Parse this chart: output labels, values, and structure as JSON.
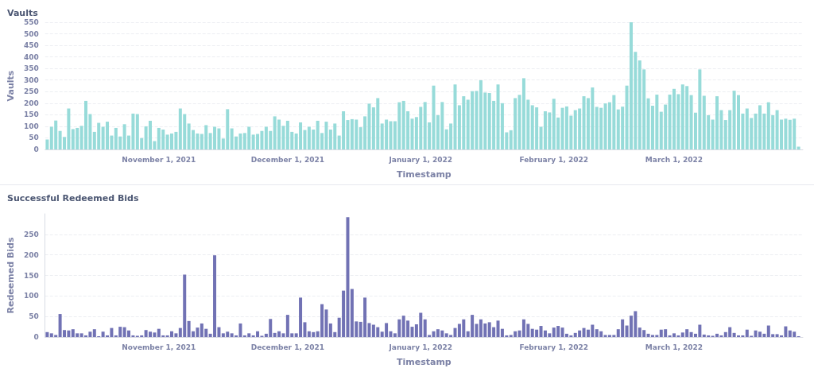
{
  "chart_data": [
    {
      "type": "bar",
      "title": "Vaults",
      "xlabel": "Timestamp",
      "ylabel": "Vaults",
      "color": "#97dbd9",
      "grid": "y",
      "x": [
        "2021-10-06",
        "2021-10-07",
        "2021-10-08",
        "2021-10-09",
        "2021-10-10",
        "2021-10-11",
        "2021-10-12",
        "2021-10-13",
        "2021-10-14",
        "2021-10-15",
        "2021-10-16",
        "2021-10-17",
        "2021-10-18",
        "2021-10-19",
        "2021-10-20",
        "2021-10-21",
        "2021-10-22",
        "2021-10-23",
        "2021-10-24",
        "2021-10-25",
        "2021-10-26",
        "2021-10-27",
        "2021-10-28",
        "2021-10-29",
        "2021-10-30",
        "2021-10-31",
        "2021-11-01",
        "2021-11-02",
        "2021-11-03",
        "2021-11-04",
        "2021-11-05",
        "2021-11-06",
        "2021-11-07",
        "2021-11-08",
        "2021-11-09",
        "2021-11-10",
        "2021-11-11",
        "2021-11-12",
        "2021-11-13",
        "2021-11-14",
        "2021-11-15",
        "2021-11-16",
        "2021-11-17",
        "2021-11-18",
        "2021-11-19",
        "2021-11-20",
        "2021-11-21",
        "2021-11-22",
        "2021-11-23",
        "2021-11-24",
        "2021-11-25",
        "2021-11-26",
        "2021-11-27",
        "2021-11-28",
        "2021-11-29",
        "2021-11-30",
        "2021-12-01",
        "2021-12-02",
        "2021-12-03",
        "2021-12-04",
        "2021-12-05",
        "2021-12-06",
        "2021-12-07",
        "2021-12-08",
        "2021-12-09",
        "2021-12-10",
        "2021-12-11",
        "2021-12-12",
        "2021-12-13",
        "2021-12-14",
        "2021-12-15",
        "2021-12-16",
        "2021-12-17",
        "2021-12-18",
        "2021-12-19",
        "2021-12-20",
        "2021-12-21",
        "2021-12-22",
        "2021-12-23",
        "2021-12-24",
        "2021-12-25",
        "2021-12-26",
        "2021-12-27",
        "2021-12-28",
        "2021-12-29",
        "2021-12-30",
        "2021-12-31",
        "2022-01-01",
        "2022-01-02",
        "2022-01-03",
        "2022-01-04",
        "2022-01-05",
        "2022-01-06",
        "2022-01-07",
        "2022-01-08",
        "2022-01-09",
        "2022-01-10",
        "2022-01-11",
        "2022-01-12",
        "2022-01-13",
        "2022-01-14",
        "2022-01-15",
        "2022-01-16",
        "2022-01-17",
        "2022-01-18",
        "2022-01-19",
        "2022-01-20",
        "2022-01-21",
        "2022-01-22",
        "2022-01-23",
        "2022-01-24",
        "2022-01-25",
        "2022-01-26",
        "2022-01-27",
        "2022-01-28",
        "2022-01-29",
        "2022-01-30",
        "2022-01-31",
        "2022-02-01",
        "2022-02-02",
        "2022-02-03",
        "2022-02-04",
        "2022-02-05",
        "2022-02-06",
        "2022-02-07",
        "2022-02-08",
        "2022-02-09",
        "2022-02-10",
        "2022-02-11",
        "2022-02-12",
        "2022-02-13",
        "2022-02-14",
        "2022-02-15",
        "2022-02-16",
        "2022-02-17",
        "2022-02-18",
        "2022-02-19",
        "2022-02-20",
        "2022-02-21",
        "2022-02-22",
        "2022-02-23",
        "2022-02-24",
        "2022-02-25",
        "2022-02-26",
        "2022-02-27",
        "2022-02-28",
        "2022-03-01",
        "2022-03-02",
        "2022-03-03",
        "2022-03-04",
        "2022-03-05",
        "2022-03-06",
        "2022-03-07",
        "2022-03-08",
        "2022-03-09",
        "2022-03-10",
        "2022-03-11",
        "2022-03-12",
        "2022-03-13",
        "2022-03-14",
        "2022-03-15",
        "2022-03-16",
        "2022-03-17",
        "2022-03-18",
        "2022-03-19",
        "2022-03-20",
        "2022-03-21",
        "2022-03-22",
        "2022-03-23",
        "2022-03-24",
        "2022-03-25",
        "2022-03-26",
        "2022-03-27",
        "2022-03-28",
        "2022-03-29",
        "2022-03-30"
      ],
      "values": [
        43,
        98,
        125,
        80,
        54,
        177,
        88,
        93,
        102,
        210,
        153,
        76,
        115,
        98,
        120,
        60,
        93,
        56,
        109,
        60,
        155,
        153,
        49,
        100,
        124,
        36,
        93,
        86,
        64,
        69,
        76,
        177,
        153,
        112,
        84,
        69,
        67,
        105,
        71,
        98,
        91,
        47,
        174,
        91,
        56,
        69,
        71,
        98,
        64,
        67,
        80,
        98,
        80,
        143,
        129,
        102,
        124,
        76,
        69,
        117,
        84,
        98,
        86,
        124,
        71,
        120,
        86,
        112,
        60,
        165,
        127,
        131,
        129,
        96,
        143,
        198,
        182,
        222,
        112,
        129,
        122,
        122,
        204,
        210,
        165,
        133,
        140,
        184,
        205,
        117,
        276,
        148,
        205,
        87,
        112,
        281,
        191,
        230,
        215,
        252,
        253,
        299,
        246,
        244,
        210,
        281,
        200,
        74,
        83,
        222,
        236,
        308,
        215,
        191,
        182,
        98,
        165,
        160,
        219,
        138,
        180,
        186,
        146,
        170,
        177,
        230,
        222,
        268,
        184,
        180,
        199,
        204,
        235,
        173,
        185,
        276,
        550,
        422,
        385,
        346,
        221,
        189,
        237,
        163,
        194,
        237,
        262,
        239,
        281,
        274,
        235,
        159,
        346,
        232,
        148,
        129,
        230,
        170,
        127,
        170,
        254,
        235,
        155,
        177,
        136,
        155,
        191,
        155,
        204,
        148,
        170,
        129,
        133,
        128,
        133,
        12
      ],
      "xlim": [
        "2021-10-05T12:00",
        "2022-03-31T00:00"
      ],
      "xticks": [
        {
          "value": "2021-11-01",
          "label": "November 1, 2021"
        },
        {
          "value": "2021-12-01",
          "label": "December 1, 2021"
        },
        {
          "value": "2022-01-01",
          "label": "January 1, 2022"
        },
        {
          "value": "2022-02-01",
          "label": "February 1, 2022"
        },
        {
          "value": "2022-03-01",
          "label": "March 1, 2022"
        }
      ],
      "ylim": [
        0,
        550
      ],
      "yticks": [
        0,
        50,
        100,
        150,
        200,
        250,
        300,
        350,
        400,
        450,
        500,
        550
      ]
    },
    {
      "type": "bar",
      "title": "Successful Redeemed Bids",
      "xlabel": "Timestamp",
      "ylabel": "Redeemed Bids",
      "color": "#7172b4",
      "grid": "y",
      "x": [
        "2021-10-06",
        "2021-10-07",
        "2021-10-08",
        "2021-10-09",
        "2021-10-10",
        "2021-10-11",
        "2021-10-12",
        "2021-10-13",
        "2021-10-14",
        "2021-10-15",
        "2021-10-16",
        "2021-10-17",
        "2021-10-18",
        "2021-10-19",
        "2021-10-20",
        "2021-10-21",
        "2021-10-22",
        "2021-10-23",
        "2021-10-24",
        "2021-10-25",
        "2021-10-26",
        "2021-10-27",
        "2021-10-28",
        "2021-10-29",
        "2021-10-30",
        "2021-10-31",
        "2021-11-01",
        "2021-11-02",
        "2021-11-03",
        "2021-11-04",
        "2021-11-05",
        "2021-11-06",
        "2021-11-07",
        "2021-11-08",
        "2021-11-09",
        "2021-11-10",
        "2021-11-11",
        "2021-11-12",
        "2021-11-13",
        "2021-11-14",
        "2021-11-15",
        "2021-11-16",
        "2021-11-17",
        "2021-11-18",
        "2021-11-19",
        "2021-11-20",
        "2021-11-21",
        "2021-11-22",
        "2021-11-23",
        "2021-11-24",
        "2021-11-25",
        "2021-11-26",
        "2021-11-27",
        "2021-11-28",
        "2021-11-29",
        "2021-11-30",
        "2021-12-01",
        "2021-12-02",
        "2021-12-03",
        "2021-12-04",
        "2021-12-05",
        "2021-12-06",
        "2021-12-07",
        "2021-12-08",
        "2021-12-09",
        "2021-12-10",
        "2021-12-11",
        "2021-12-12",
        "2021-12-13",
        "2021-12-14",
        "2021-12-15",
        "2021-12-16",
        "2021-12-17",
        "2021-12-18",
        "2021-12-19",
        "2021-12-20",
        "2021-12-21",
        "2021-12-22",
        "2021-12-23",
        "2021-12-24",
        "2021-12-25",
        "2021-12-26",
        "2021-12-27",
        "2021-12-28",
        "2021-12-29",
        "2021-12-30",
        "2021-12-31",
        "2022-01-01",
        "2022-01-02",
        "2022-01-03",
        "2022-01-04",
        "2022-01-05",
        "2022-01-06",
        "2022-01-07",
        "2022-01-08",
        "2022-01-09",
        "2022-01-10",
        "2022-01-11",
        "2022-01-12",
        "2022-01-13",
        "2022-01-14",
        "2022-01-15",
        "2022-01-16",
        "2022-01-17",
        "2022-01-18",
        "2022-01-19",
        "2022-01-20",
        "2022-01-21",
        "2022-01-22",
        "2022-01-23",
        "2022-01-24",
        "2022-01-25",
        "2022-01-26",
        "2022-01-27",
        "2022-01-28",
        "2022-01-29",
        "2022-01-30",
        "2022-01-31",
        "2022-02-01",
        "2022-02-02",
        "2022-02-03",
        "2022-02-04",
        "2022-02-05",
        "2022-02-06",
        "2022-02-07",
        "2022-02-08",
        "2022-02-09",
        "2022-02-10",
        "2022-02-11",
        "2022-02-12",
        "2022-02-13",
        "2022-02-14",
        "2022-02-15",
        "2022-02-16",
        "2022-02-17",
        "2022-02-18",
        "2022-02-19",
        "2022-02-20",
        "2022-02-21",
        "2022-02-22",
        "2022-02-23",
        "2022-02-24",
        "2022-02-25",
        "2022-02-26",
        "2022-02-27",
        "2022-02-28",
        "2022-03-01",
        "2022-03-02",
        "2022-03-03",
        "2022-03-04",
        "2022-03-05",
        "2022-03-06",
        "2022-03-07",
        "2022-03-08",
        "2022-03-09",
        "2022-03-10",
        "2022-03-11",
        "2022-03-12",
        "2022-03-13",
        "2022-03-14",
        "2022-03-15",
        "2022-03-16",
        "2022-03-17",
        "2022-03-18",
        "2022-03-19",
        "2022-03-20",
        "2022-03-21",
        "2022-03-22",
        "2022-03-23",
        "2022-03-24",
        "2022-03-25",
        "2022-03-26",
        "2022-03-27",
        "2022-03-28",
        "2022-03-29",
        "2022-03-30"
      ],
      "values": [
        12,
        9,
        5,
        56,
        17,
        16,
        19,
        9,
        9,
        4,
        13,
        19,
        2,
        13,
        4,
        22,
        4,
        25,
        24,
        16,
        4,
        3,
        4,
        17,
        13,
        11,
        20,
        4,
        4,
        14,
        9,
        22,
        152,
        39,
        14,
        23,
        33,
        20,
        8,
        199,
        24,
        9,
        13,
        9,
        4,
        33,
        4,
        9,
        4,
        14,
        3,
        8,
        44,
        10,
        14,
        9,
        54,
        9,
        9,
        96,
        36,
        14,
        12,
        14,
        80,
        67,
        33,
        12,
        47,
        113,
        292,
        117,
        38,
        37,
        96,
        34,
        30,
        24,
        13,
        34,
        14,
        9,
        43,
        52,
        40,
        25,
        31,
        59,
        43,
        5,
        14,
        19,
        16,
        9,
        5,
        22,
        32,
        43,
        14,
        54,
        32,
        43,
        33,
        36,
        24,
        40,
        20,
        4,
        5,
        14,
        16,
        43,
        32,
        20,
        18,
        27,
        16,
        9,
        23,
        27,
        23,
        8,
        4,
        10,
        16,
        22,
        18,
        30,
        19,
        14,
        5,
        5,
        5,
        19,
        43,
        28,
        52,
        63,
        23,
        17,
        8,
        5,
        5,
        18,
        19,
        4,
        9,
        4,
        11,
        19,
        12,
        8,
        30,
        6,
        4,
        3,
        8,
        4,
        12,
        24,
        10,
        4,
        4,
        18,
        3,
        16,
        13,
        8,
        28,
        7,
        7,
        4,
        26,
        16,
        13,
        2
      ],
      "xlim": [
        "2021-10-05T12:00",
        "2022-03-31T00:00"
      ],
      "xticks": [
        {
          "value": "2021-11-01",
          "label": "November 1, 2021"
        },
        {
          "value": "2021-12-01",
          "label": "December 1, 2021"
        },
        {
          "value": "2022-01-01",
          "label": "January 1, 2022"
        },
        {
          "value": "2022-02-01",
          "label": "February 1, 2022"
        },
        {
          "value": "2022-03-01",
          "label": "March 1, 2022"
        }
      ],
      "ylim": [
        0,
        300
      ],
      "yticks": [
        0,
        50,
        100,
        150,
        200,
        250
      ]
    }
  ]
}
